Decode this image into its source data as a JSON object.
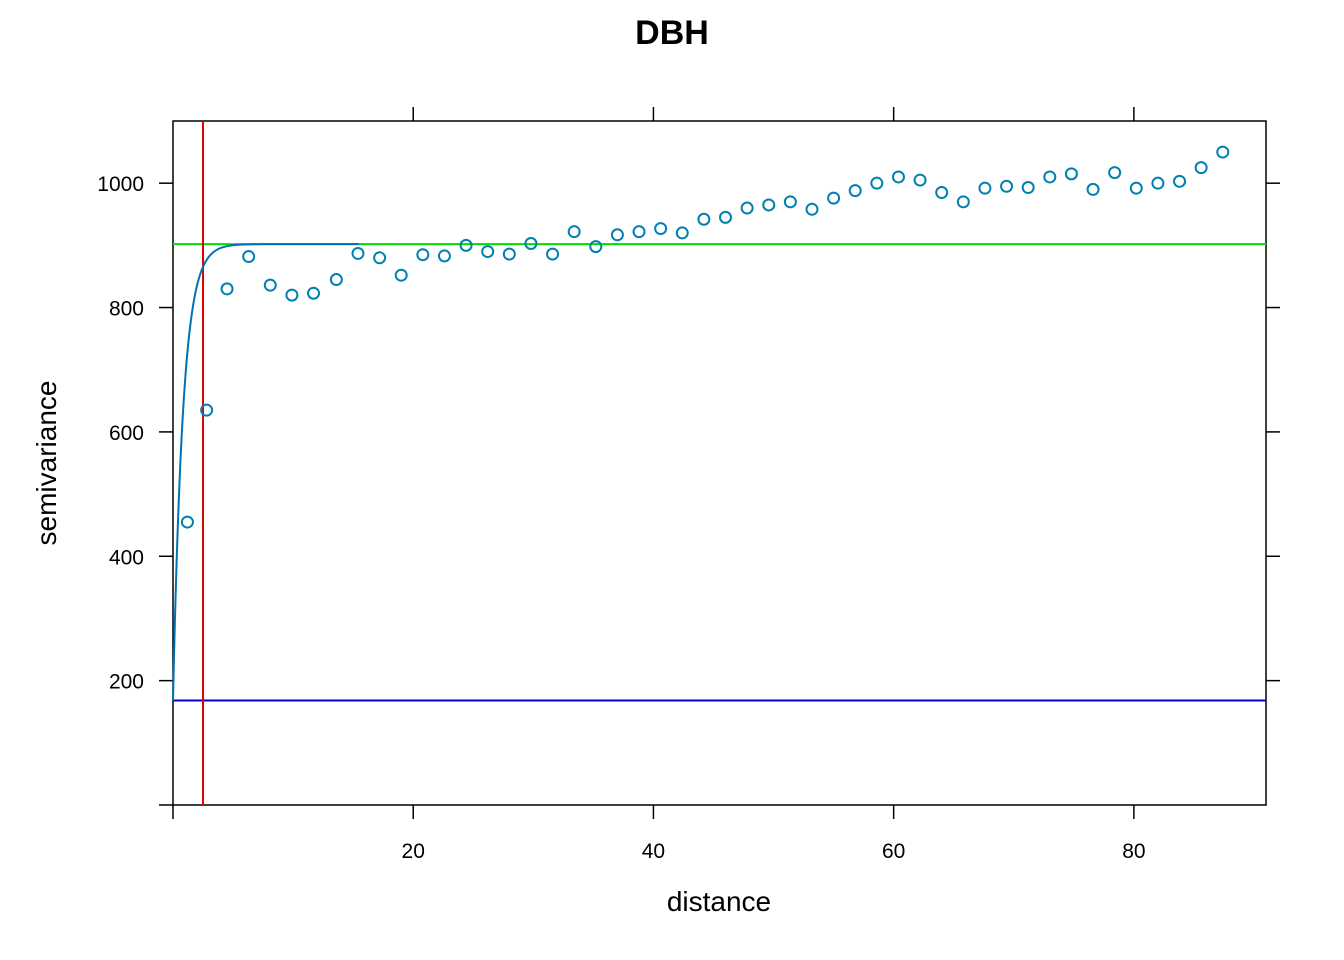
{
  "chart_data": {
    "type": "scatter",
    "title": "DBH",
    "xlabel": "distance",
    "ylabel": "semivariance",
    "xlim": [
      0,
      91
    ],
    "ylim": [
      0,
      1100
    ],
    "x_ticks": [
      20,
      40,
      60,
      80
    ],
    "y_ticks": [
      200,
      400,
      600,
      800,
      1000
    ],
    "x_tick_labels": [
      "20",
      "40",
      "60",
      "80"
    ],
    "y_tick_labels": [
      "200",
      "400",
      "600",
      "800",
      "1000"
    ],
    "grid": false,
    "colors": {
      "points": "#0080b0",
      "model_curve": "#0072b2",
      "sill_line": "#00dd00",
      "nugget_line": "#0000cc",
      "range_line": "#dd0000"
    },
    "series": [
      {
        "kind": "points",
        "x": [
          1.2,
          2.8,
          4.5,
          6.3,
          8.1,
          9.9,
          11.7,
          13.6,
          15.4,
          17.2,
          19.0,
          20.8,
          22.6,
          24.4,
          26.2,
          28.0,
          29.8,
          31.6,
          33.4,
          35.2,
          37.0,
          38.8,
          40.6,
          42.4,
          44.2,
          46.0,
          47.8,
          49.6,
          51.4,
          53.2,
          55.0,
          56.8,
          58.6,
          60.4,
          62.2,
          64.0,
          65.8,
          67.6,
          69.4,
          71.2,
          73.0,
          74.8,
          76.6,
          78.4,
          80.2,
          82.0,
          83.8,
          85.6,
          87.4
        ],
        "y": [
          455,
          635,
          830,
          882,
          836,
          820,
          823,
          845,
          887,
          880,
          852,
          885,
          883,
          900,
          890,
          886,
          903,
          886,
          922,
          898,
          917,
          922,
          927,
          920,
          942,
          945,
          960,
          965,
          970,
          958,
          976,
          988,
          1000,
          1010,
          1005,
          985,
          970,
          992,
          995,
          993,
          1010,
          1015,
          990,
          1017,
          992,
          1000,
          1003,
          1025,
          1050
        ]
      },
      {
        "kind": "model",
        "nugget": 168,
        "sill": 902,
        "effective_range": 2.5
      }
    ],
    "reference_lines": {
      "sill_y": 902,
      "nugget_y": 168,
      "range_x": 2.5
    }
  }
}
